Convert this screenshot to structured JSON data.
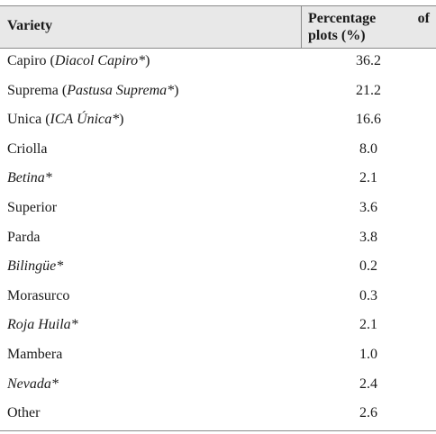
{
  "header": {
    "variety": "Variety",
    "percentage_line1_a": "Percentage",
    "percentage_line1_b": "of",
    "percentage_line2": "plots (%)"
  },
  "rows": [
    {
      "name": "Capiro",
      "paren_open": " (",
      "italic": "Diacol Capiro*",
      "paren_close": ")",
      "value": "36.2"
    },
    {
      "name": "Suprema",
      "paren_open": " (",
      "italic": "Pastusa Suprema*",
      "paren_close": ")",
      "value": "21.2"
    },
    {
      "name": "Unica",
      "paren_open": " (",
      "italic": "ICA Única*",
      "paren_close": ")",
      "value": "16.6"
    },
    {
      "name": "Criolla",
      "paren_open": "",
      "italic": "",
      "paren_close": "",
      "value": "8.0"
    },
    {
      "name": "",
      "paren_open": "",
      "italic": "Betina*",
      "paren_close": "",
      "value": "2.1"
    },
    {
      "name": "Superior",
      "paren_open": "",
      "italic": "",
      "paren_close": "",
      "value": "3.6"
    },
    {
      "name": "Parda",
      "paren_open": "",
      "italic": "",
      "paren_close": "",
      "value": "3.8"
    },
    {
      "name": "",
      "paren_open": "",
      "italic": "Bilingüe*",
      "paren_close": "",
      "value": "0.2"
    },
    {
      "name": "Morasurco",
      "paren_open": "",
      "italic": "",
      "paren_close": "",
      "value": "0.3"
    },
    {
      "name": "",
      "paren_open": "",
      "italic": "Roja Huila*",
      "paren_close": "",
      "value": "2.1"
    },
    {
      "name": "Mambera",
      "paren_open": "",
      "italic": "",
      "paren_close": "",
      "value": "1.0"
    },
    {
      "name": "",
      "paren_open": "",
      "italic": "Nevada*",
      "paren_close": "",
      "value": "2.4"
    },
    {
      "name": "Other",
      "paren_open": "",
      "italic": "",
      "paren_close": "",
      "value": "2.6"
    }
  ],
  "colors": {
    "header_bg": "#e8e8e8",
    "rule": "#8a8a8a"
  }
}
